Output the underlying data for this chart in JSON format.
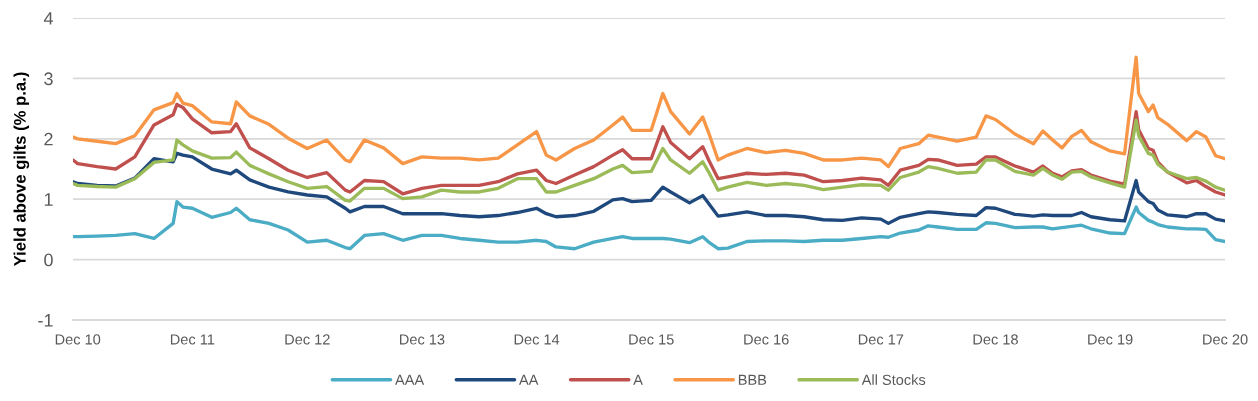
{
  "chart_data": {
    "type": "line",
    "ylabel": "Yield above gilts (% p.a.)",
    "x": [
      "2010-11-16",
      "2010-12",
      "2011-02",
      "2011-04",
      "2011-06",
      "2011-08",
      "2011-10",
      "2011-10-13",
      "2011-11",
      "2011-12",
      "2012-02",
      "2012-04",
      "2012-04-19",
      "2012-06",
      "2012-08",
      "2012-10",
      "2012-12",
      "2013-02",
      "2013-04",
      "2013-04-16",
      "2013-06",
      "2013-08",
      "2013-10",
      "2013-12",
      "2014-02",
      "2014-04",
      "2014-06",
      "2014-08",
      "2014-10",
      "2014-12",
      "2015-01",
      "2015-02",
      "2015-04",
      "2015-06",
      "2015-08",
      "2015-09",
      "2015-10",
      "2015-12",
      "2016-01-07",
      "2016-02",
      "2016-04",
      "2016-05-13",
      "2016-06",
      "2016-07",
      "2016-08",
      "2016-10",
      "2016-12",
      "2017-02",
      "2017-04",
      "2017-06",
      "2017-08",
      "2017-10",
      "2017-12",
      "2017-12-25",
      "2018-02",
      "2018-04",
      "2018-05",
      "2018-06",
      "2018-08",
      "2018-10",
      "2018-11",
      "2018-12",
      "2019-02",
      "2019-04",
      "2019-05",
      "2019-06",
      "2019-07",
      "2019-08",
      "2019-09",
      "2019-10",
      "2019-12",
      "2020-01-16",
      "2020-02-22",
      "2020-03",
      "2020-04",
      "2020-04-16",
      "2020-05",
      "2020-06",
      "2020-08",
      "2020-09",
      "2020-10",
      "2020-11",
      "2020-12"
    ],
    "series": [
      {
        "name": "AAA",
        "color": "#4bacc6",
        "values": [
          0.38,
          0.38,
          0.39,
          0.4,
          0.43,
          0.35,
          0.6,
          0.96,
          0.87,
          0.85,
          0.7,
          0.78,
          0.85,
          0.66,
          0.6,
          0.49,
          0.29,
          0.32,
          0.2,
          0.18,
          0.4,
          0.43,
          0.32,
          0.4,
          0.4,
          0.35,
          0.32,
          0.29,
          0.29,
          0.32,
          0.3,
          0.21,
          0.18,
          0.29,
          0.35,
          0.38,
          0.35,
          0.35,
          0.35,
          0.34,
          0.28,
          0.38,
          0.29,
          0.18,
          0.19,
          0.3,
          0.31,
          0.31,
          0.3,
          0.32,
          0.32,
          0.35,
          0.38,
          0.37,
          0.44,
          0.49,
          0.56,
          0.54,
          0.5,
          0.5,
          0.61,
          0.6,
          0.53,
          0.54,
          0.54,
          0.51,
          0.53,
          0.55,
          0.57,
          0.51,
          0.44,
          0.43,
          0.87,
          0.78,
          0.65,
          0.62,
          0.58,
          0.54,
          0.51,
          0.51,
          0.5,
          0.33,
          0.3
        ]
      },
      {
        "name": "AA",
        "color": "#1f497d",
        "values": [
          1.29,
          1.26,
          1.23,
          1.22,
          1.35,
          1.67,
          1.62,
          1.76,
          1.73,
          1.7,
          1.5,
          1.42,
          1.48,
          1.32,
          1.2,
          1.12,
          1.07,
          1.04,
          0.85,
          0.79,
          0.88,
          0.88,
          0.76,
          0.76,
          0.76,
          0.73,
          0.71,
          0.73,
          0.78,
          0.85,
          0.76,
          0.71,
          0.73,
          0.8,
          0.99,
          1.01,
          0.96,
          0.98,
          1.2,
          1.12,
          0.94,
          1.06,
          0.93,
          0.72,
          0.74,
          0.79,
          0.73,
          0.73,
          0.71,
          0.66,
          0.65,
          0.69,
          0.67,
          0.6,
          0.7,
          0.76,
          0.79,
          0.78,
          0.75,
          0.73,
          0.86,
          0.85,
          0.75,
          0.72,
          0.74,
          0.73,
          0.73,
          0.73,
          0.78,
          0.71,
          0.66,
          0.64,
          1.31,
          1.12,
          0.96,
          0.93,
          0.82,
          0.74,
          0.71,
          0.76,
          0.76,
          0.67,
          0.64
        ]
      },
      {
        "name": "A",
        "color": "#c0504d",
        "values": [
          1.65,
          1.59,
          1.54,
          1.5,
          1.7,
          2.23,
          2.4,
          2.57,
          2.52,
          2.33,
          2.1,
          2.12,
          2.25,
          1.85,
          1.67,
          1.48,
          1.36,
          1.44,
          1.15,
          1.12,
          1.31,
          1.29,
          1.09,
          1.18,
          1.23,
          1.23,
          1.23,
          1.29,
          1.42,
          1.48,
          1.31,
          1.26,
          1.4,
          1.54,
          1.73,
          1.82,
          1.67,
          1.67,
          2.2,
          1.94,
          1.67,
          1.87,
          1.65,
          1.34,
          1.37,
          1.43,
          1.41,
          1.43,
          1.4,
          1.29,
          1.31,
          1.35,
          1.32,
          1.23,
          1.48,
          1.56,
          1.66,
          1.65,
          1.56,
          1.58,
          1.7,
          1.7,
          1.55,
          1.45,
          1.55,
          1.43,
          1.37,
          1.47,
          1.49,
          1.4,
          1.3,
          1.25,
          2.45,
          2.15,
          1.84,
          1.81,
          1.62,
          1.45,
          1.27,
          1.31,
          1.21,
          1.12,
          1.07
        ]
      },
      {
        "name": "BBB",
        "color": "#f79646",
        "values": [
          2.03,
          2.0,
          1.96,
          1.92,
          2.05,
          2.48,
          2.6,
          2.75,
          2.59,
          2.55,
          2.28,
          2.25,
          2.61,
          2.38,
          2.24,
          2.01,
          1.84,
          1.98,
          1.65,
          1.62,
          1.98,
          1.85,
          1.59,
          1.7,
          1.68,
          1.68,
          1.65,
          1.68,
          1.9,
          2.12,
          1.73,
          1.65,
          1.84,
          1.98,
          2.23,
          2.36,
          2.14,
          2.14,
          2.75,
          2.45,
          2.08,
          2.36,
          2.1,
          1.65,
          1.73,
          1.84,
          1.77,
          1.81,
          1.76,
          1.65,
          1.65,
          1.68,
          1.65,
          1.54,
          1.84,
          1.92,
          2.06,
          2.03,
          1.96,
          2.03,
          2.38,
          2.32,
          2.08,
          1.92,
          2.13,
          1.98,
          1.85,
          2.04,
          2.14,
          1.95,
          1.8,
          1.75,
          3.35,
          2.75,
          2.45,
          2.56,
          2.35,
          2.24,
          1.97,
          2.12,
          2.03,
          1.72,
          1.67
        ]
      },
      {
        "name": "All Stocks",
        "color": "#9bbb59",
        "values": [
          1.26,
          1.23,
          1.21,
          1.2,
          1.34,
          1.61,
          1.65,
          1.98,
          1.9,
          1.8,
          1.68,
          1.69,
          1.78,
          1.56,
          1.42,
          1.29,
          1.18,
          1.21,
          0.98,
          0.97,
          1.18,
          1.18,
          1.01,
          1.04,
          1.15,
          1.12,
          1.12,
          1.18,
          1.34,
          1.34,
          1.12,
          1.12,
          1.23,
          1.34,
          1.5,
          1.56,
          1.44,
          1.46,
          1.84,
          1.65,
          1.43,
          1.62,
          1.45,
          1.15,
          1.2,
          1.28,
          1.23,
          1.26,
          1.23,
          1.16,
          1.2,
          1.24,
          1.23,
          1.15,
          1.36,
          1.45,
          1.54,
          1.51,
          1.43,
          1.45,
          1.65,
          1.65,
          1.46,
          1.4,
          1.51,
          1.4,
          1.33,
          1.45,
          1.46,
          1.37,
          1.27,
          1.2,
          2.31,
          2.05,
          1.76,
          1.73,
          1.58,
          1.45,
          1.34,
          1.36,
          1.3,
          1.2,
          1.15
        ]
      }
    ],
    "xlim": [
      "2010-11-16",
      "2020-12-01"
    ],
    "xticks": [
      {
        "value": "2010-12-01",
        "label": "Dec 10"
      },
      {
        "value": "2011-12-01",
        "label": "Dec 11"
      },
      {
        "value": "2012-12-01",
        "label": "Dec 12"
      },
      {
        "value": "2013-12-01",
        "label": "Dec 13"
      },
      {
        "value": "2014-12-01",
        "label": "Dec 14"
      },
      {
        "value": "2015-12-01",
        "label": "Dec 15"
      },
      {
        "value": "2016-12-01",
        "label": "Dec 16"
      },
      {
        "value": "2017-12-01",
        "label": "Dec 17"
      },
      {
        "value": "2018-12-01",
        "label": "Dec 18"
      },
      {
        "value": "2019-12-01",
        "label": "Dec 19"
      },
      {
        "value": "2020-12-01",
        "label": "Dec 20"
      }
    ],
    "ylim": [
      -1,
      4
    ],
    "yticks": [
      -1,
      0,
      1,
      2,
      3,
      4
    ],
    "grid": "y",
    "legend": "bottom"
  }
}
